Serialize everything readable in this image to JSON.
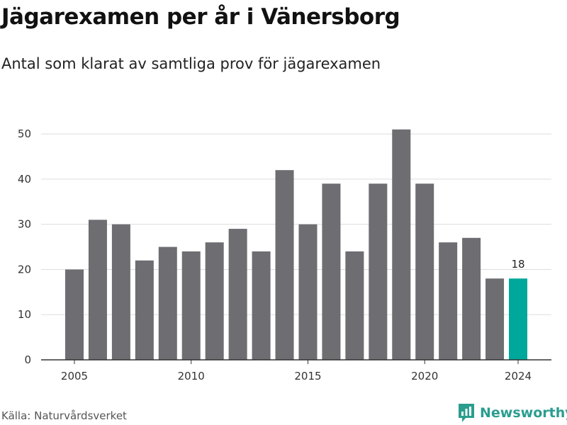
{
  "header": {
    "title": "Jägarexamen per år i Vänersborg",
    "subtitle": "Antal som klarat av samtliga prov för jägarexamen"
  },
  "footer": {
    "source": "Källa: Naturvårdsverket",
    "brand": "Newsworthy"
  },
  "colors": {
    "bar": "#6d6d72",
    "highlight": "#00a79b",
    "grid": "#dddddd",
    "axis": "#333333",
    "brand": "#2a9d8f"
  },
  "chart_data": {
    "type": "bar",
    "x": [
      2005,
      2006,
      2007,
      2008,
      2009,
      2010,
      2011,
      2012,
      2013,
      2014,
      2015,
      2016,
      2017,
      2018,
      2019,
      2020,
      2021,
      2022,
      2023,
      2024
    ],
    "values": [
      20,
      31,
      30,
      22,
      25,
      24,
      26,
      29,
      24,
      42,
      30,
      39,
      24,
      39,
      51,
      39,
      26,
      27,
      18,
      18
    ],
    "highlight": [
      2024
    ],
    "data_labels": [
      {
        "x": 2024,
        "label": "18"
      }
    ],
    "xticks": [
      "2005",
      "2010",
      "2015",
      "2020",
      "2024"
    ],
    "yticks": [
      "0",
      "10",
      "20",
      "30",
      "40",
      "50"
    ],
    "ylim": [
      0,
      53
    ],
    "grid": true,
    "title": "Jägarexamen per år i Vänersborg",
    "subtitle": "Antal som klarat av samtliga prov för jägarexamen"
  }
}
